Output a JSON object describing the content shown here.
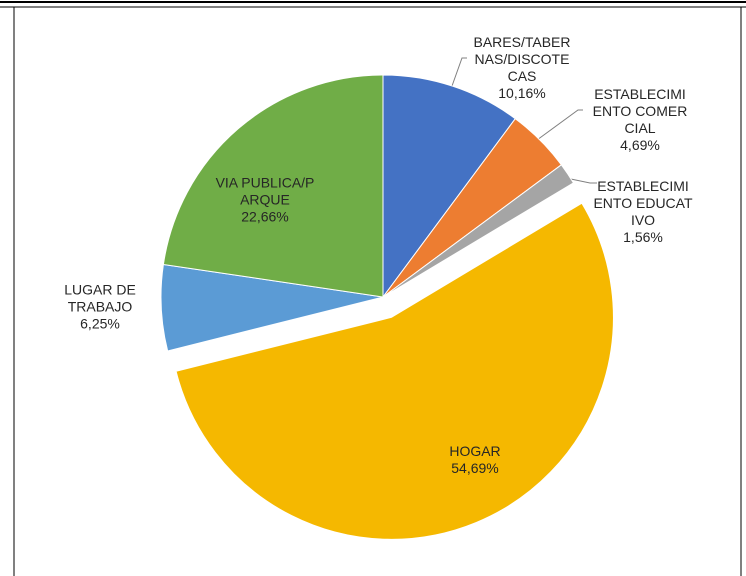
{
  "chart_data": {
    "type": "pie",
    "categories": [
      "BARES/TABERNAS/DISCOTECAS",
      "ESTABLECIMIENTO COMERCIAL",
      "ESTABLECIMIENTO EDUCATIVO",
      "HOGAR",
      "LUGAR DE TRABAJO",
      "VIA PUBLICA/PARQUE"
    ],
    "values": [
      10.16,
      4.69,
      1.56,
      54.69,
      6.25,
      22.66
    ],
    "value_labels": [
      "10,16%",
      "4,69%",
      "1,56%",
      "54,69%",
      "6,25%",
      "22,66%"
    ],
    "colors": [
      "#4472c4",
      "#ed7d31",
      "#a5a5a5",
      "#f5b800",
      "#5b9bd5",
      "#70ad47"
    ],
    "exploded": [
      3
    ]
  }
}
